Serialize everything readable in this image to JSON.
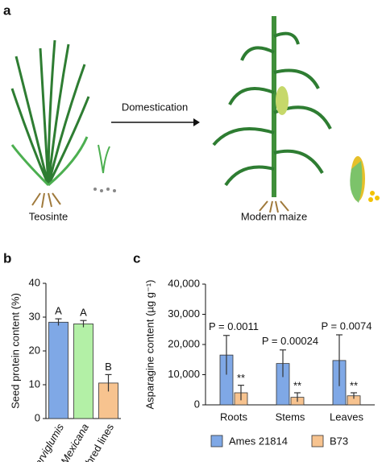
{
  "panel_a": {
    "label": "a",
    "arrow_label": "Domestication",
    "left_label": "Teosinte",
    "right_label": "Modern maize"
  },
  "chart_data": [
    {
      "type": "bar",
      "panel": "b",
      "ylabel": "Seed protein content (%)",
      "categories": [
        "Parviglumis",
        "Mexicana",
        "Inbred lines"
      ],
      "values": [
        28.5,
        28,
        10.5
      ],
      "errors": [
        1,
        1,
        2.5
      ],
      "colors": [
        "#7fa8e6",
        "#b3f0a6",
        "#f7c38f"
      ],
      "annotations": [
        "A",
        "A",
        "B"
      ],
      "ylim": [
        0,
        40
      ],
      "yticks": [
        0,
        10,
        20,
        30,
        40
      ]
    },
    {
      "type": "grouped_bar",
      "panel": "c",
      "ylabel": "Asparagine content (µg g⁻¹)",
      "categories": [
        "Roots",
        "Stems",
        "Leaves"
      ],
      "series": [
        {
          "name": "Ames 21814",
          "color": "#7fa8e6",
          "values": [
            16500,
            13700,
            14700
          ],
          "errors": [
            6500,
            4500,
            8500
          ]
        },
        {
          "name": "B73",
          "color": "#f7c38f",
          "values": [
            4000,
            2500,
            3000
          ],
          "errors": [
            2500,
            1500,
            1000
          ]
        }
      ],
      "p_labels": [
        "P = 0.0011",
        "P = 0.00024",
        "P = 0.0074"
      ],
      "stars": [
        "**",
        "**",
        "**"
      ],
      "ylim": [
        0,
        40000
      ],
      "yticks": [
        0,
        {
          "value": 10000,
          "label": "10,000"
        },
        {
          "value": 20000,
          "label": "20,000"
        },
        {
          "value": 30000,
          "label": "30,000"
        },
        {
          "value": 40000,
          "label": "40,000"
        }
      ]
    }
  ]
}
